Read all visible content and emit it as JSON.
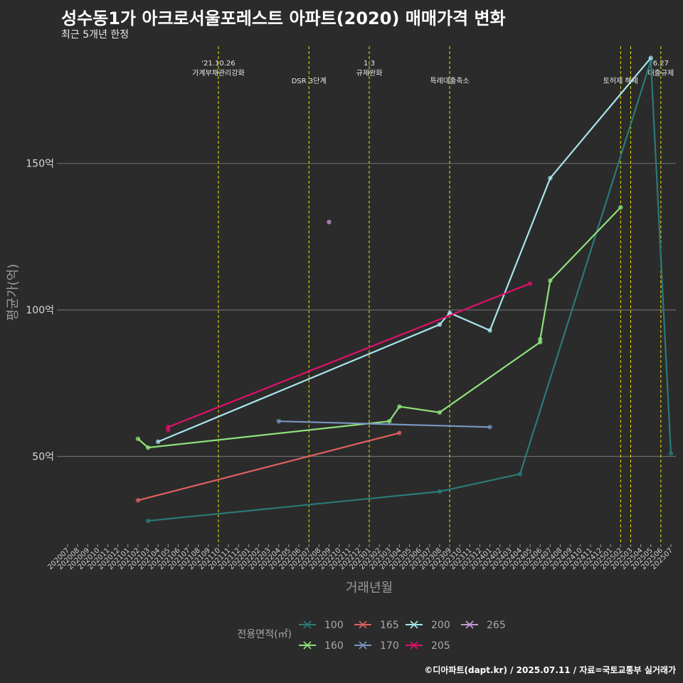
{
  "title": "성수동1가 아크로서울포레스트 아파트(2020) 매매가격 변화",
  "subtitle": "최근 5개년 한정",
  "caption": "©디아파트(dapt.kr) / 2025.07.11 / 자료=국토교통부 실거래가",
  "chart_data": {
    "type": "line",
    "xlabel": "거래년월",
    "ylabel": "평균가(억)",
    "x_months": [
      "202007",
      "202008",
      "202009",
      "202010",
      "202011",
      "202012",
      "202101",
      "202102",
      "202103",
      "202104",
      "202105",
      "202106",
      "202107",
      "202108",
      "202109",
      "202110",
      "202111",
      "202112",
      "202201",
      "202202",
      "202203",
      "202204",
      "202205",
      "202206",
      "202207",
      "202208",
      "202209",
      "202210",
      "202211",
      "202212",
      "202301",
      "202302",
      "202303",
      "202304",
      "202305",
      "202306",
      "202307",
      "202308",
      "202309",
      "202310",
      "202311",
      "202312",
      "202401",
      "202402",
      "202403",
      "202404",
      "202405",
      "202406",
      "202407",
      "202408",
      "202409",
      "202410",
      "202411",
      "202412",
      "202501",
      "202502",
      "202503",
      "202504",
      "202505",
      "202506",
      "202507"
    ],
    "ylim": [
      20,
      190
    ],
    "yticks": [
      50,
      100,
      150
    ],
    "ytick_labels": [
      "50억",
      "100억",
      "150억"
    ],
    "events": [
      {
        "month": "202110",
        "label": "'21.10.26\n가계부채관리강화"
      },
      {
        "month": "202207",
        "label": "DSR 3단계"
      },
      {
        "month": "202301",
        "label": "1.3\n규제완화"
      },
      {
        "month": "202309",
        "label": "특례대출축소"
      },
      {
        "month": "202502",
        "label": "토허제 해제"
      },
      {
        "month": "202503",
        "label": ""
      },
      {
        "month": "202506",
        "label": "6.27\n대출규제"
      }
    ],
    "legend_title": "전용면적(㎡)",
    "series": [
      {
        "name": "100",
        "color": "#2a7a78",
        "points": [
          [
            "202103",
            28
          ],
          [
            "202308",
            38
          ],
          [
            "202404",
            44
          ],
          [
            "202505",
            185
          ],
          [
            "202507",
            51
          ]
        ]
      },
      {
        "name": "160",
        "color": "#8ee07a",
        "points": [
          [
            "202102",
            56
          ],
          [
            "202103",
            53
          ],
          [
            "202303",
            62
          ],
          [
            "202304",
            67
          ],
          [
            "202308",
            65
          ],
          [
            "202406",
            89
          ],
          [
            "202406",
            90
          ],
          [
            "202407",
            110
          ],
          [
            "202502",
            135
          ]
        ]
      },
      {
        "name": "165",
        "color": "#e06060",
        "points": [
          [
            "202102",
            35
          ],
          [
            "202304",
            58
          ]
        ]
      },
      {
        "name": "170",
        "color": "#7a96c2",
        "points": [
          [
            "202204",
            62
          ],
          [
            "202401",
            60
          ]
        ]
      },
      {
        "name": "200",
        "color": "#a8e4ec",
        "points": [
          [
            "202104",
            55
          ],
          [
            "202308",
            95
          ],
          [
            "202309",
            99
          ],
          [
            "202401",
            93
          ],
          [
            "202407",
            145
          ],
          [
            "202505",
            186
          ]
        ]
      },
      {
        "name": "205",
        "color": "#e0106a",
        "points": [
          [
            "202105",
            59
          ],
          [
            "202105",
            60
          ],
          [
            "202405",
            109
          ]
        ]
      },
      {
        "name": "265",
        "color": "#c79ad8",
        "points": [
          [
            "202209",
            130
          ]
        ]
      }
    ]
  }
}
